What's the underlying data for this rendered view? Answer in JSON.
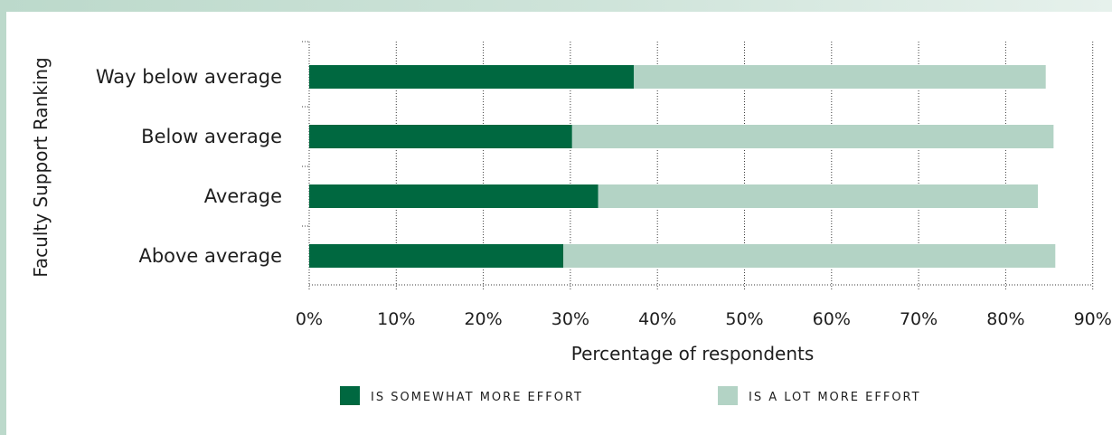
{
  "chart_data": {
    "type": "bar",
    "orientation": "horizontal",
    "stacked": true,
    "categories": [
      "Way below average",
      "Below average",
      "Average",
      "Above average"
    ],
    "series": [
      {
        "name": "IS SOMEWHAT MORE EFFORT",
        "values": [
          37.3,
          30.2,
          33.2,
          29.2
        ],
        "color": "#006840"
      },
      {
        "name": "IS A LOT MORE EFFORT",
        "values": [
          47.3,
          55.3,
          50.5,
          56.5
        ],
        "color": "#b3d3c5"
      }
    ],
    "xlabel": "Percentage of respondents",
    "ylabel": "Faculty Support Ranking",
    "xlim": [
      0,
      90
    ],
    "xticks": [
      "0%",
      "10%",
      "20%",
      "30%",
      "40%",
      "50%",
      "60%",
      "70%",
      "80%",
      "90%"
    ],
    "grid": true,
    "legend_position": "bottom"
  }
}
